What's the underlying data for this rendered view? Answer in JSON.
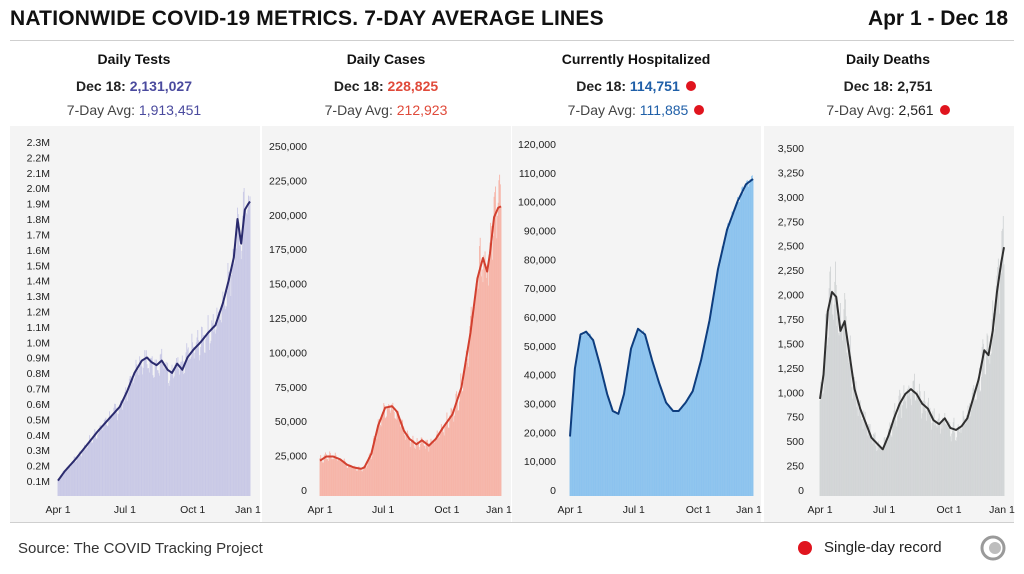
{
  "header": {
    "title": "NATIONWIDE COVID-19 METRICS. 7-DAY AVERAGE LINES",
    "date_range": "Apr 1 - Dec 18"
  },
  "panels": [
    {
      "title": "Daily Tests",
      "current_label": "Dec 18:",
      "current_value": "2,131,027",
      "avg_label": "7-Day Avg:",
      "avg_value": "1,913,451",
      "value_color": "#4a4a9e",
      "record_current": false,
      "record_avg": false
    },
    {
      "title": "Daily Cases",
      "current_label": "Dec 18:",
      "current_value": "228,825",
      "avg_label": "7-Day Avg:",
      "avg_value": "212,923",
      "value_color": "#e04a3a",
      "record_current": false,
      "record_avg": false
    },
    {
      "title": "Currently Hospitalized",
      "current_label": "Dec 18:",
      "current_value": "114,751",
      "avg_label": "7-Day Avg:",
      "avg_value": "111,885",
      "value_color": "#1f5fa8",
      "record_current": true,
      "record_avg": true
    },
    {
      "title": "Daily Deaths",
      "current_label": "Dec 18:",
      "current_value": "2,751",
      "avg_label": "7-Day Avg:",
      "avg_value": "2,561",
      "value_color": "#222222",
      "record_current": false,
      "record_avg": true
    }
  ],
  "footer": {
    "source": "Source: The COVID Tracking Project",
    "legend_label": "Single-day record"
  },
  "chart_data": [
    {
      "type": "bar",
      "title": "Daily Tests",
      "bar_color": "#c9c9e6",
      "line_color": "#2b2b6e",
      "x_ticks": [
        "Apr 1",
        "Jul 1",
        "Oct 1",
        "Jan 1"
      ],
      "y_ticks": [
        "2.3M",
        "2.2M",
        "2.1M",
        "2.0M",
        "1.9M",
        "1.8M",
        "1.7M",
        "1.6M",
        "1.5M",
        "1.4M",
        "1.3M",
        "1.2M",
        "1.1M",
        "1.0M",
        "0.9M",
        "0.8M",
        "0.7M",
        "0.6M",
        "0.5M",
        "0.4M",
        "0.3M",
        "0.2M",
        "0.1M"
      ],
      "ylim": [
        0,
        2300000
      ],
      "avg_points": [
        [
          1,
          100000
        ],
        [
          10,
          160000
        ],
        [
          25,
          240000
        ],
        [
          40,
          330000
        ],
        [
          55,
          420000
        ],
        [
          70,
          500000
        ],
        [
          85,
          580000
        ],
        [
          95,
          680000
        ],
        [
          105,
          800000
        ],
        [
          115,
          880000
        ],
        [
          122,
          900000
        ],
        [
          128,
          870000
        ],
        [
          135,
          850000
        ],
        [
          142,
          880000
        ],
        [
          150,
          820000
        ],
        [
          156,
          800000
        ],
        [
          163,
          860000
        ],
        [
          170,
          820000
        ],
        [
          177,
          900000
        ],
        [
          185,
          950000
        ],
        [
          195,
          1000000
        ],
        [
          205,
          1060000
        ],
        [
          215,
          1110000
        ],
        [
          225,
          1250000
        ],
        [
          233,
          1400000
        ],
        [
          240,
          1550000
        ],
        [
          245,
          1800000
        ],
        [
          250,
          1640000
        ],
        [
          255,
          1860000
        ],
        [
          260,
          1900000
        ],
        [
          262,
          1913451
        ]
      ],
      "noise_amp": 0.13
    },
    {
      "type": "bar",
      "title": "Daily Cases",
      "bar_color": "#f6b5a9",
      "line_color": "#d2402f",
      "x_ticks": [
        "Apr 1",
        "Jul 1",
        "Oct 1",
        "Jan 1"
      ],
      "y_ticks": [
        "250,000",
        "225,000",
        "200,000",
        "175,000",
        "150,000",
        "125,000",
        "100,000",
        "75,000",
        "50,000",
        "25,000",
        "0"
      ],
      "ylim": [
        0,
        250000
      ],
      "avg_points": [
        [
          1,
          26000
        ],
        [
          10,
          29000
        ],
        [
          20,
          29000
        ],
        [
          30,
          27000
        ],
        [
          40,
          23000
        ],
        [
          50,
          21000
        ],
        [
          60,
          20000
        ],
        [
          65,
          21000
        ],
        [
          75,
          31000
        ],
        [
          85,
          52000
        ],
        [
          95,
          65000
        ],
        [
          105,
          66000
        ],
        [
          112,
          62000
        ],
        [
          122,
          48000
        ],
        [
          130,
          42000
        ],
        [
          140,
          38000
        ],
        [
          148,
          41000
        ],
        [
          158,
          37000
        ],
        [
          168,
          42000
        ],
        [
          178,
          50000
        ],
        [
          192,
          60000
        ],
        [
          205,
          80000
        ],
        [
          218,
          120000
        ],
        [
          228,
          160000
        ],
        [
          236,
          175000
        ],
        [
          242,
          165000
        ],
        [
          246,
          178000
        ],
        [
          252,
          205000
        ],
        [
          258,
          212000
        ],
        [
          262,
          212923
        ]
      ],
      "noise_amp": 0.15
    },
    {
      "type": "area",
      "title": "Currently Hospitalized",
      "bar_color": "#8cc3ee",
      "line_color": "#0e3d7e",
      "x_ticks": [
        "Apr 1",
        "Jul 1",
        "Oct 1",
        "Jan 1"
      ],
      "y_ticks": [
        "120,000",
        "110,000",
        "100,000",
        "90,000",
        "80,000",
        "70,000",
        "60,000",
        "50,000",
        "40,000",
        "30,000",
        "20,000",
        "10,000",
        "0"
      ],
      "ylim": [
        0,
        120000
      ],
      "avg_points": [
        [
          1,
          21000
        ],
        [
          8,
          45000
        ],
        [
          16,
          57000
        ],
        [
          24,
          58000
        ],
        [
          34,
          55000
        ],
        [
          44,
          46000
        ],
        [
          54,
          36000
        ],
        [
          62,
          30000
        ],
        [
          70,
          29000
        ],
        [
          78,
          36000
        ],
        [
          88,
          52000
        ],
        [
          98,
          59000
        ],
        [
          108,
          57000
        ],
        [
          118,
          48000
        ],
        [
          128,
          40000
        ],
        [
          138,
          33000
        ],
        [
          148,
          30000
        ],
        [
          156,
          30000
        ],
        [
          166,
          33000
        ],
        [
          176,
          37000
        ],
        [
          188,
          48000
        ],
        [
          200,
          62000
        ],
        [
          212,
          80000
        ],
        [
          225,
          94000
        ],
        [
          240,
          104000
        ],
        [
          252,
          110000
        ],
        [
          262,
          111885
        ]
      ],
      "noise_amp": 0.02
    },
    {
      "type": "bar",
      "title": "Daily Deaths",
      "bar_color": "#d2d5d6",
      "line_color": "#2f2f2f",
      "x_ticks": [
        "Apr 1",
        "Jul 1",
        "Oct 1",
        "Jan 1"
      ],
      "y_ticks": [
        "3,500",
        "3,250",
        "3,000",
        "2,750",
        "2,500",
        "2,250",
        "2,000",
        "1,750",
        "1,500",
        "1,250",
        "1,000",
        "750",
        "500",
        "250",
        "0"
      ],
      "ylim": [
        0,
        3500
      ],
      "avg_points": [
        [
          1,
          1000
        ],
        [
          6,
          1250
        ],
        [
          12,
          1900
        ],
        [
          18,
          2100
        ],
        [
          24,
          2050
        ],
        [
          30,
          1700
        ],
        [
          36,
          1800
        ],
        [
          42,
          1500
        ],
        [
          50,
          1100
        ],
        [
          58,
          900
        ],
        [
          66,
          750
        ],
        [
          74,
          600
        ],
        [
          82,
          540
        ],
        [
          90,
          480
        ],
        [
          98,
          620
        ],
        [
          106,
          800
        ],
        [
          114,
          950
        ],
        [
          122,
          1050
        ],
        [
          130,
          1100
        ],
        [
          138,
          1050
        ],
        [
          146,
          950
        ],
        [
          154,
          900
        ],
        [
          162,
          780
        ],
        [
          170,
          740
        ],
        [
          178,
          800
        ],
        [
          186,
          700
        ],
        [
          194,
          680
        ],
        [
          202,
          720
        ],
        [
          210,
          800
        ],
        [
          218,
          1000
        ],
        [
          226,
          1200
        ],
        [
          234,
          1500
        ],
        [
          240,
          1450
        ],
        [
          246,
          1700
        ],
        [
          252,
          2100
        ],
        [
          258,
          2400
        ],
        [
          262,
          2561
        ]
      ],
      "noise_amp": 0.2
    }
  ]
}
